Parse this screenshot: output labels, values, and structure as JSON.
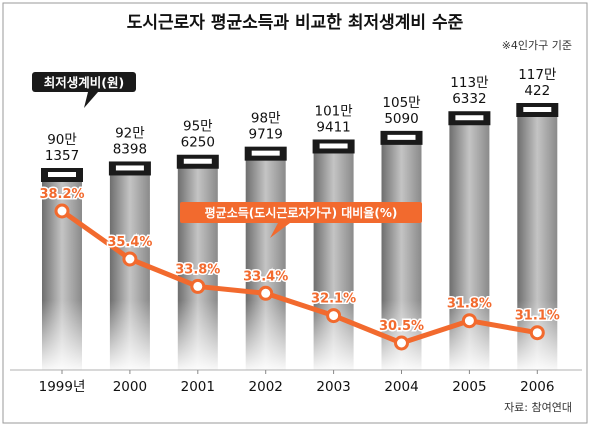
{
  "title": "도시근로자 평균소득과 비교한 최저생계비 수준",
  "subtitle": "※4인가구 기준",
  "source": "자료: 참여연대",
  "bar_legend": "최저생계비(원)",
  "line_legend": "평균소득(도시근로자가구) 대비율(%)",
  "colors": {
    "line": "#f26a2e",
    "label": "#f26a2e",
    "bar_cap": "#1a1a1a",
    "legend_bg": "#1a1a1a"
  },
  "chart_data": {
    "type": "bar",
    "categories": [
      "1999년",
      "2000",
      "2001",
      "2002",
      "2003",
      "2004",
      "2005",
      "2006"
    ],
    "series": [
      {
        "name": "최저생계비(원)",
        "type": "bar",
        "values": [
          901357,
          928398,
          956250,
          989719,
          1019411,
          1055090,
          1136332,
          1170422
        ],
        "labels": [
          [
            "90만",
            "1357"
          ],
          [
            "92만",
            "8398"
          ],
          [
            "95만",
            "6250"
          ],
          [
            "98만",
            "9719"
          ],
          [
            "101만",
            "9411"
          ],
          [
            "105만",
            "5090"
          ],
          [
            "113만",
            "6332"
          ],
          [
            "117만",
            "422"
          ]
        ]
      },
      {
        "name": "평균소득(도시근로자가구) 대비율(%)",
        "type": "line",
        "values": [
          38.2,
          35.4,
          33.8,
          33.4,
          32.1,
          30.5,
          31.8,
          31.1
        ],
        "labels": [
          "38.2%",
          "35.4%",
          "33.8%",
          "33.4%",
          "32.1%",
          "30.5%",
          "31.8%",
          "31.1%"
        ]
      }
    ]
  }
}
